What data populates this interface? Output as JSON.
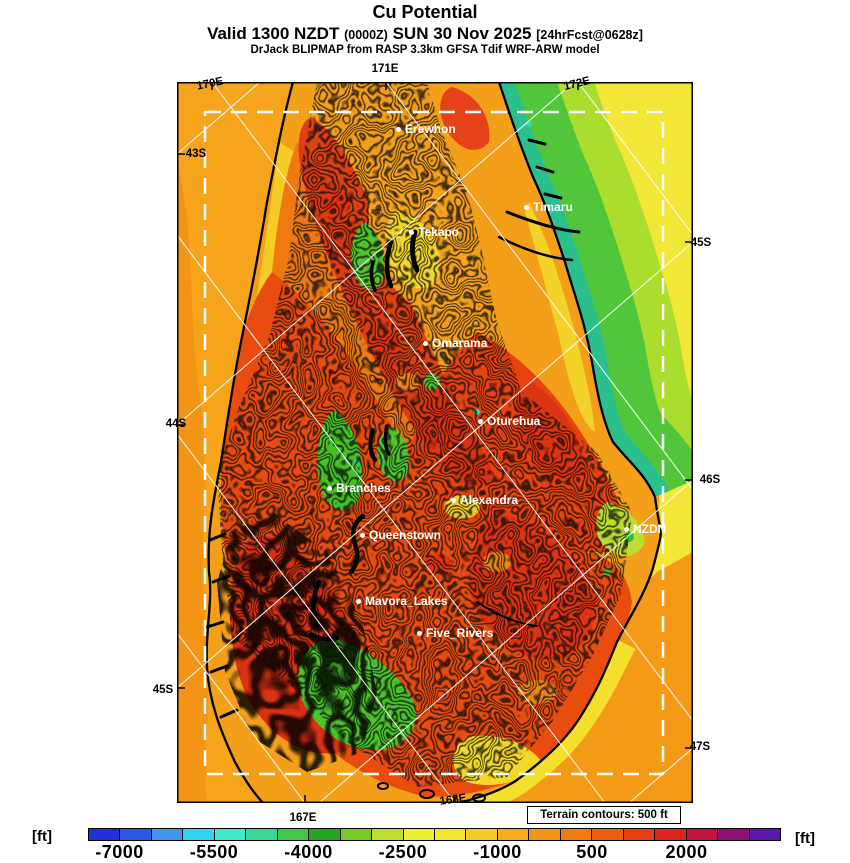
{
  "title": "Cu Potential",
  "valid_line": {
    "part1": "Valid 1300 NZDT",
    "zulu": "(0000Z)",
    "part2": "SUN 30 Nov 2025",
    "fcst": "[24hrFcst@0628z]"
  },
  "model_line": "DrJack BLIPMAP from RASP 3.3km GFSA Tdif WRF-ARW model",
  "map": {
    "terrain_note": "Terrain contours: 500 ft",
    "lon_labels_top": [
      {
        "label": "170E"
      },
      {
        "label": "171E"
      },
      {
        "label": "172E"
      }
    ],
    "lon_labels_bottom": [
      {
        "label": "167E"
      },
      {
        "label": "168E"
      }
    ],
    "lat_labels_left": [
      {
        "label": "43S"
      },
      {
        "label": "44S"
      },
      {
        "label": "45S"
      }
    ],
    "lat_labels_right": [
      {
        "label": "45S"
      },
      {
        "label": "46S"
      },
      {
        "label": "47S"
      }
    ],
    "cities": [
      {
        "name": "Erewhon"
      },
      {
        "name": "Timaru"
      },
      {
        "name": "Tekapo"
      },
      {
        "name": "Omarama"
      },
      {
        "name": "Oturehua"
      },
      {
        "name": "Branches"
      },
      {
        "name": "Alexandra"
      },
      {
        "name": "NZDN"
      },
      {
        "name": "Queenstown"
      },
      {
        "name": "Mavora_Lakes"
      },
      {
        "name": "Five_Rivers"
      }
    ]
  },
  "colorbar": {
    "unit_left": "[ft]",
    "unit_right": "[ft]",
    "min_ft": -7500,
    "max_ft": 3500,
    "step_ft": 500,
    "tick_labels": [
      "-7000",
      "-5500",
      "-4000",
      "-2500",
      "-1000",
      "500",
      "2000"
    ],
    "colors": [
      "#2130dd",
      "#2b59e4",
      "#3f97f0",
      "#2fd4f0",
      "#40e9c7",
      "#3bd795",
      "#43c548",
      "#23a620",
      "#7bc82a",
      "#bcdc2e",
      "#eeee35",
      "#f4e52e",
      "#f6cb24",
      "#f7ab1d",
      "#f59517",
      "#f17a12",
      "#ed5e0e",
      "#e8400f",
      "#dd2418",
      "#c5123e",
      "#8c136e",
      "#5a17ae"
    ]
  }
}
